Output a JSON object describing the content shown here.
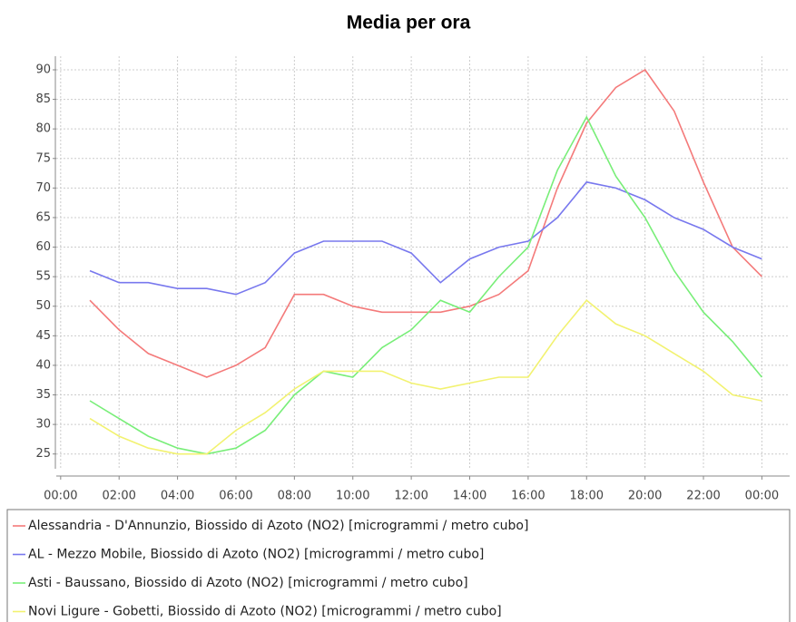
{
  "chart_data": {
    "type": "line",
    "title": "Media per ora",
    "x": [
      1,
      2,
      3,
      4,
      5,
      6,
      7,
      8,
      9,
      10,
      11,
      12,
      13,
      14,
      15,
      16,
      17,
      18,
      19,
      20,
      21,
      22,
      23,
      24
    ],
    "xlim": [
      -0.15,
      24.95
    ],
    "xticks": [
      {
        "value": 0,
        "label": "00:00"
      },
      {
        "value": 2,
        "label": "02:00"
      },
      {
        "value": 4,
        "label": "04:00"
      },
      {
        "value": 6,
        "label": "06:00"
      },
      {
        "value": 8,
        "label": "08:00"
      },
      {
        "value": 10,
        "label": "10:00"
      },
      {
        "value": 12,
        "label": "12:00"
      },
      {
        "value": 14,
        "label": "14:00"
      },
      {
        "value": 16,
        "label": "16:00"
      },
      {
        "value": 18,
        "label": "18:00"
      },
      {
        "value": 20,
        "label": "20:00"
      },
      {
        "value": 22,
        "label": "22:00"
      },
      {
        "value": 24,
        "label": "00:00"
      }
    ],
    "ylim": [
      22.5,
      92.3
    ],
    "yticks": [
      25,
      30,
      35,
      40,
      45,
      50,
      55,
      60,
      65,
      70,
      75,
      80,
      85,
      90
    ],
    "grid": true,
    "legend": "bottom",
    "series": [
      {
        "name": "Alessandria - D'Annunzio, Biossido di Azoto (NO2) [microgrammi / metro cubo]",
        "color": "#f47a7a",
        "values": [
          51,
          46,
          42,
          40,
          38,
          40,
          43,
          52,
          52,
          50,
          49,
          49,
          49,
          50,
          52,
          56,
          70,
          81,
          87,
          90,
          83,
          71,
          60,
          55
        ]
      },
      {
        "name": "AL - Mezzo Mobile, Biossido di Azoto (NO2) [microgrammi / metro cubo]",
        "color": "#7878ee",
        "values": [
          56,
          54,
          54,
          53,
          53,
          52,
          54,
          59,
          61,
          61,
          61,
          59,
          54,
          58,
          60,
          61,
          65,
          71,
          70,
          68,
          65,
          63,
          60,
          58
        ]
      },
      {
        "name": "Asti - Baussano, Biossido di Azoto (NO2) [microgrammi / metro cubo]",
        "color": "#78ee78",
        "values": [
          34,
          31,
          28,
          26,
          25,
          26,
          29,
          35,
          39,
          38,
          43,
          46,
          51,
          49,
          55,
          60,
          73,
          82,
          72,
          65,
          56,
          49,
          44,
          38
        ]
      },
      {
        "name": "Novi Ligure - Gobetti, Biossido di Azoto (NO2) [microgrammi / metro cubo]",
        "color": "#f2f270",
        "values": [
          31,
          28,
          26,
          25,
          25,
          29,
          32,
          36,
          39,
          39,
          39,
          37,
          36,
          37,
          38,
          38,
          45,
          51,
          47,
          45,
          42,
          39,
          35,
          34
        ]
      }
    ]
  }
}
